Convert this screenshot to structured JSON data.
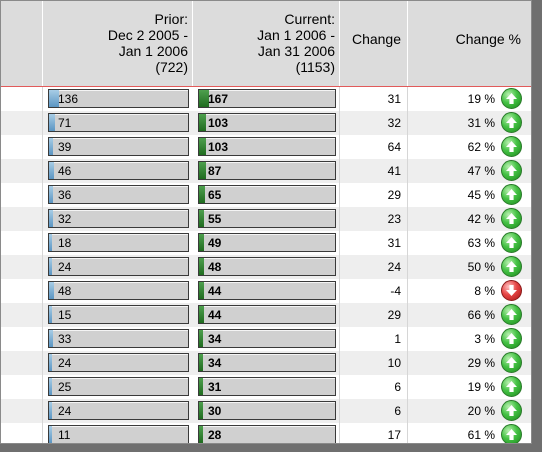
{
  "header": {
    "prior": {
      "line1": "Prior:",
      "line2": "Dec 2 2005 -",
      "line3": "Jan 1 2006",
      "line4": "(722)"
    },
    "current": {
      "line1": "Current:",
      "line2": "Jan 1 2006 -",
      "line3": "Jan 31 2006",
      "line4": "(1153)"
    },
    "change": "Change",
    "change_pct": "Change %"
  },
  "colors": {
    "prior_bar": "#5b95c2",
    "current_bar": "#1f6b1f",
    "up": "#2fae2f",
    "down": "#d93030",
    "header_rule": "#e15a5a"
  },
  "rows": [
    {
      "prior": "136",
      "current": "167",
      "change": "31",
      "pct": "19 %",
      "dir": "up-arrow-icon"
    },
    {
      "prior": "71",
      "current": "103",
      "change": "32",
      "pct": "31 %",
      "dir": "up-arrow-icon"
    },
    {
      "prior": "39",
      "current": "103",
      "change": "64",
      "pct": "62 %",
      "dir": "up-arrow-icon"
    },
    {
      "prior": "46",
      "current": "87",
      "change": "41",
      "pct": "47 %",
      "dir": "up-arrow-icon"
    },
    {
      "prior": "36",
      "current": "65",
      "change": "29",
      "pct": "45 %",
      "dir": "up-arrow-icon"
    },
    {
      "prior": "32",
      "current": "55",
      "change": "23",
      "pct": "42 %",
      "dir": "up-arrow-icon"
    },
    {
      "prior": "18",
      "current": "49",
      "change": "31",
      "pct": "63 %",
      "dir": "up-arrow-icon"
    },
    {
      "prior": "24",
      "current": "48",
      "change": "24",
      "pct": "50 %",
      "dir": "up-arrow-icon"
    },
    {
      "prior": "48",
      "current": "44",
      "change": "-4",
      "pct": "8 %",
      "dir": "down-arrow-icon"
    },
    {
      "prior": "15",
      "current": "44",
      "change": "29",
      "pct": "66 %",
      "dir": "up-arrow-icon"
    },
    {
      "prior": "33",
      "current": "34",
      "change": "1",
      "pct": "3 %",
      "dir": "up-arrow-icon"
    },
    {
      "prior": "24",
      "current": "34",
      "change": "10",
      "pct": "29 %",
      "dir": "up-arrow-icon"
    },
    {
      "prior": "25",
      "current": "31",
      "change": "6",
      "pct": "19 %",
      "dir": "up-arrow-icon"
    },
    {
      "prior": "24",
      "current": "30",
      "change": "6",
      "pct": "20 %",
      "dir": "up-arrow-icon"
    },
    {
      "prior": "11",
      "current": "28",
      "change": "17",
      "pct": "61 %",
      "dir": "up-arrow-icon"
    }
  ]
}
